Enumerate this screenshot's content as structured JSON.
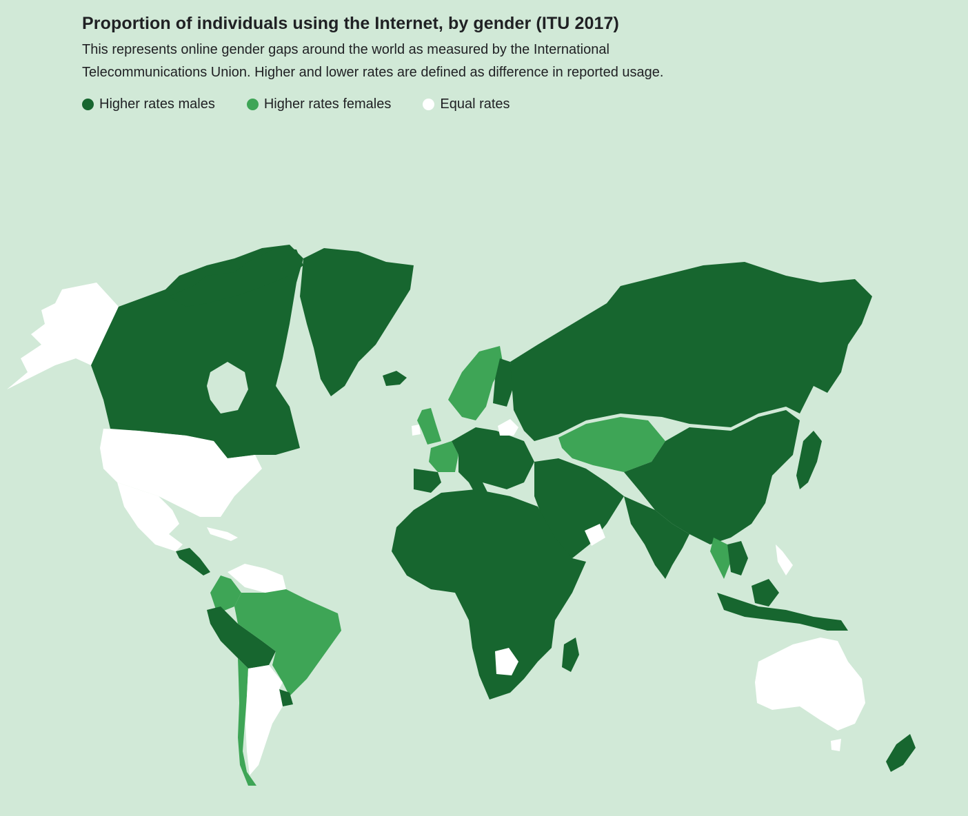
{
  "title": "Proportion of individuals using the Internet, by gender (ITU 2017)",
  "subtitle_line1": "This represents online gender gaps around the world as measured by the International",
  "subtitle_line2": "Telecommunications Union. Higher and lower rates are defined as difference in reported usage.",
  "legend": [
    {
      "label": "Higher rates males",
      "color": "#17662f"
    },
    {
      "label": "Higher rates females",
      "color": "#3ea556"
    },
    {
      "label": "Equal rates",
      "color": "#ffffff"
    }
  ],
  "colors": {
    "background": "#d1e9d7",
    "males": "#17662f",
    "females": "#3ea556",
    "equal": "#ffffff"
  },
  "regions": {
    "males": [
      "Canada",
      "Greenland",
      "Russia",
      "China",
      "India",
      "Africa",
      "Middle East",
      "Indonesia",
      "Peru",
      "Bolivia",
      "New Zealand",
      "Central Europe",
      "Iceland",
      "Svalbard"
    ],
    "females": [
      "Kazakhstan",
      "Brazil",
      "Scandinavia",
      "United Kingdom",
      "France",
      "Chile",
      "Colombia",
      "Thailand"
    ],
    "equal": [
      "Alaska",
      "United States",
      "Mexico",
      "Australia",
      "Argentina",
      "Belarus",
      "Botswana",
      "Venezuela",
      "Oman",
      "Philippines"
    ]
  }
}
